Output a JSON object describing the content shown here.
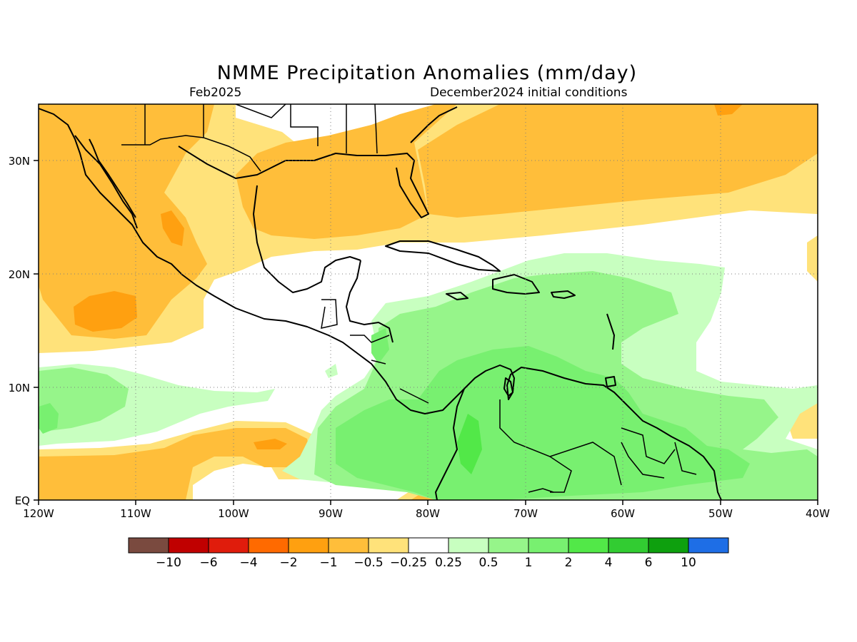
{
  "title": "NMME Precipitation Anomalies (mm/day)",
  "subtitle_left": "Feb2025",
  "subtitle_right": "December2024 initial conditions",
  "map": {
    "lon_labels": [
      "120W",
      "110W",
      "100W",
      "90W",
      "80W",
      "70W",
      "60W",
      "50W",
      "40W"
    ],
    "lat_labels": [
      "EQ",
      "10N",
      "20N",
      "30N"
    ]
  },
  "colorbar": {
    "colors": [
      "#7a4a3f",
      "#c00000",
      "#e01c0c",
      "#ff6a00",
      "#ffa010",
      "#ffbe3a",
      "#ffe27a",
      "#ffffff",
      "#c8ffc0",
      "#96f58a",
      "#78f070",
      "#52e848",
      "#32cc32",
      "#0ea00e",
      "#1e6ee6"
    ],
    "labels": [
      "−10",
      "−6",
      "−4",
      "−2",
      "−1",
      "−0.5",
      "−0.25",
      "0.25",
      "0.5",
      "1",
      "2",
      "4",
      "6",
      "10"
    ]
  }
}
